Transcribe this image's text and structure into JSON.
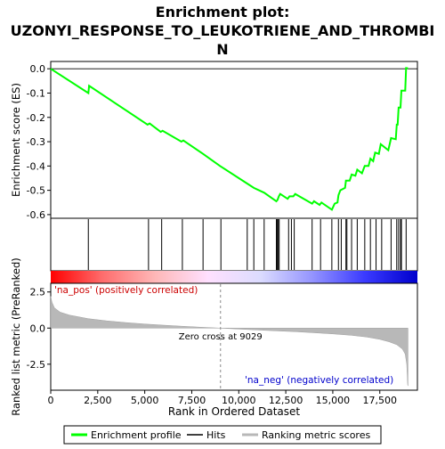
{
  "chart_data": {
    "type": "line",
    "title_lines": [
      "Enrichment plot:",
      "UZONYI_RESPONSE_TO_LEUKOTRIENE_AND_THROMBI",
      "N"
    ],
    "xlabel": "Rank in Ordered Dataset",
    "x_ticks": [
      0,
      2500,
      5000,
      7500,
      10000,
      12500,
      15000,
      17500
    ],
    "x_tick_labels": [
      "0",
      "2,500",
      "5,000",
      "7,500",
      "10,000",
      "12,500",
      "15,000",
      "17,500"
    ],
    "xlim": [
      0,
      19500
    ],
    "es_panel": {
      "ylabel": "Enrichment score (ES)",
      "ylim": [
        -0.615,
        0.03
      ],
      "y_ticks": [
        0.0,
        -0.1,
        -0.2,
        -0.3,
        -0.4,
        -0.5,
        -0.6
      ],
      "y_tick_labels": [
        "0.0",
        "-0.1",
        "-0.2",
        "-0.3",
        "-0.4",
        "-0.5",
        "-0.6"
      ],
      "series": [
        {
          "name": "Enrichment profile",
          "color": "#00ff00",
          "points": [
            [
              0,
              0.0
            ],
            [
              2000,
              -0.1
            ],
            [
              2040,
              -0.07
            ],
            [
              5150,
              -0.23
            ],
            [
              5260,
              -0.225
            ],
            [
              5850,
              -0.26
            ],
            [
              5950,
              -0.255
            ],
            [
              6950,
              -0.3
            ],
            [
              7050,
              -0.295
            ],
            [
              8100,
              -0.35
            ],
            [
              9000,
              -0.4
            ],
            [
              10400,
              -0.47
            ],
            [
              10800,
              -0.49
            ],
            [
              11350,
              -0.51
            ],
            [
              12000,
              -0.545
            ],
            [
              12060,
              -0.54
            ],
            [
              12130,
              -0.525
            ],
            [
              12200,
              -0.515
            ],
            [
              12600,
              -0.535
            ],
            [
              12700,
              -0.525
            ],
            [
              12900,
              -0.525
            ],
            [
              13000,
              -0.515
            ],
            [
              13900,
              -0.555
            ],
            [
              14000,
              -0.545
            ],
            [
              14300,
              -0.56
            ],
            [
              14400,
              -0.55
            ],
            [
              14950,
              -0.58
            ],
            [
              15100,
              -0.555
            ],
            [
              15250,
              -0.55
            ],
            [
              15300,
              -0.52
            ],
            [
              15400,
              -0.5
            ],
            [
              15650,
              -0.49
            ],
            [
              15700,
              -0.46
            ],
            [
              15900,
              -0.46
            ],
            [
              16000,
              -0.435
            ],
            [
              16200,
              -0.44
            ],
            [
              16300,
              -0.415
            ],
            [
              16550,
              -0.43
            ],
            [
              16700,
              -0.4
            ],
            [
              16900,
              -0.4
            ],
            [
              17000,
              -0.37
            ],
            [
              17150,
              -0.38
            ],
            [
              17250,
              -0.345
            ],
            [
              17450,
              -0.35
            ],
            [
              17550,
              -0.31
            ],
            [
              17950,
              -0.335
            ],
            [
              18100,
              -0.285
            ],
            [
              18350,
              -0.29
            ],
            [
              18400,
              -0.23
            ],
            [
              18450,
              -0.23
            ],
            [
              18500,
              -0.16
            ],
            [
              18600,
              -0.16
            ],
            [
              18650,
              -0.09
            ],
            [
              18850,
              -0.09
            ],
            [
              18900,
              0.003
            ],
            [
              19000,
              0.002
            ]
          ]
        }
      ]
    },
    "hits": [
      2000,
      5200,
      5900,
      7000,
      8100,
      9050,
      10450,
      10800,
      11350,
      12000,
      12050,
      12100,
      12150,
      12650,
      12800,
      12950,
      13900,
      14350,
      14950,
      15300,
      15450,
      15700,
      15750,
      16000,
      16300,
      16700,
      17000,
      17300,
      17600,
      18100,
      18400,
      18500,
      18600,
      18650,
      18900
    ],
    "color_bar": {
      "stops": [
        "#ff0000",
        "#ff6e6e",
        "#ffb8b8",
        "#ffe0ff",
        "#dcdcff",
        "#9494ff",
        "#3a3aff",
        "#0000cc"
      ],
      "label_pos": "'na_pos' (positively correlated)",
      "label_neg": "'na_neg' (negatively correlated)",
      "pos_color": "#cc0000",
      "neg_color": "#0000cc"
    },
    "metric_panel": {
      "ylabel": "Ranked list metric (PreRanked)",
      "ylim": [
        -4.3,
        3.1
      ],
      "y_ticks": [
        2.5,
        0.0,
        -2.5
      ],
      "y_tick_labels": [
        "2.5",
        "0.0",
        "-2.5"
      ],
      "zero_cross": 9029,
      "zero_cross_label": "Zero cross at 9029",
      "series": [
        {
          "name": "Ranking metric scores",
          "color": "#b8b8b8",
          "points": [
            [
              0,
              2.2
            ],
            [
              60,
              1.8
            ],
            [
              200,
              1.4
            ],
            [
              500,
              1.1
            ],
            [
              1000,
              0.9
            ],
            [
              2000,
              0.65
            ],
            [
              3000,
              0.5
            ],
            [
              4000,
              0.38
            ],
            [
              5000,
              0.28
            ],
            [
              6000,
              0.2
            ],
            [
              7000,
              0.13
            ],
            [
              8000,
              0.06
            ],
            [
              9029,
              0.0
            ],
            [
              10000,
              -0.07
            ],
            [
              11000,
              -0.13
            ],
            [
              12000,
              -0.19
            ],
            [
              13000,
              -0.25
            ],
            [
              14000,
              -0.32
            ],
            [
              15000,
              -0.4
            ],
            [
              16000,
              -0.5
            ],
            [
              16800,
              -0.62
            ],
            [
              17500,
              -0.78
            ],
            [
              18000,
              -0.95
            ],
            [
              18400,
              -1.15
            ],
            [
              18700,
              -1.45
            ],
            [
              18850,
              -1.8
            ],
            [
              18930,
              -2.5
            ],
            [
              18960,
              -3.3
            ],
            [
              18980,
              -3.9
            ],
            [
              19000,
              -4.0
            ]
          ]
        }
      ]
    },
    "legend": {
      "items": [
        {
          "label": "Enrichment profile",
          "color": "#00ff00"
        },
        {
          "label": "Hits",
          "color": "#000000"
        },
        {
          "label": "Ranking metric scores",
          "color": "#b8b8b8"
        }
      ]
    }
  }
}
